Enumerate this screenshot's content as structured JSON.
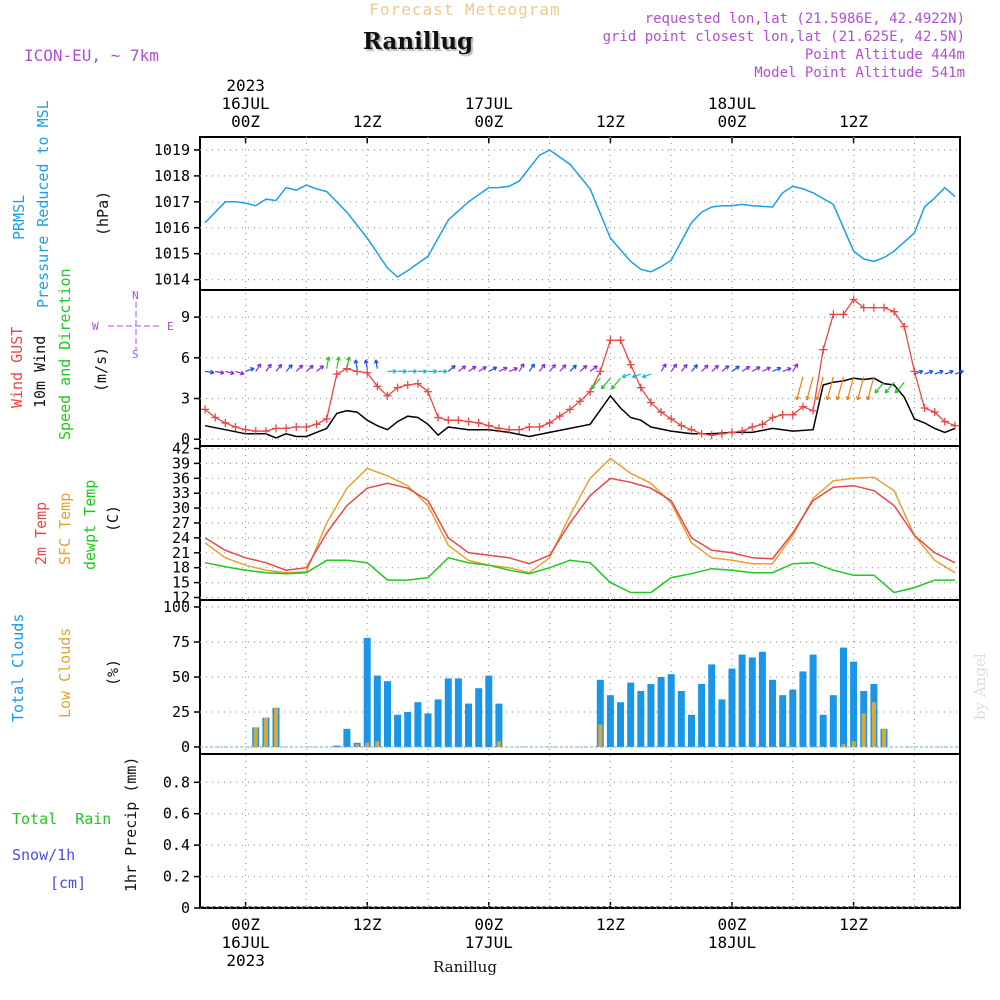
{
  "header": {
    "product": "Forecast Meteogram",
    "title": "Ranillug",
    "model": "ICON-EU, ~ 7km",
    "requested": "requested lon,lat (21.5986E, 42.4922N)",
    "gridpoint": "grid point closest lon,lat (21.625E, 42.5N)",
    "point_alt": "Point Altitude 444m",
    "model_alt": "Model Point Altitude 541m",
    "footer": "Ranillug",
    "credit": "by Angel"
  },
  "colors": {
    "pressure": "#1aa0e8",
    "gust": "#e84848",
    "wind": "#000000",
    "temp2m": "#e84848",
    "sfc": "#e8a030",
    "dewpt": "#20c820",
    "total_clouds": "#1a96e8",
    "low_clouds": "#d8a838",
    "rain": "#20c820",
    "snow": "#4a4ae8",
    "purple": "#b050d0"
  },
  "time_axis": {
    "top": [
      {
        "t": 0,
        "lines": [
          "2023",
          "16JUL",
          "00Z"
        ]
      },
      {
        "t": 12,
        "lines": [
          "12Z"
        ]
      },
      {
        "t": 24,
        "lines": [
          "17JUL",
          "00Z"
        ]
      },
      {
        "t": 36,
        "lines": [
          "12Z"
        ]
      },
      {
        "t": 48,
        "lines": [
          "18JUL",
          "00Z"
        ]
      },
      {
        "t": 60,
        "lines": [
          "12Z"
        ]
      }
    ],
    "bottom": [
      {
        "t": 0,
        "lines": [
          "00Z",
          "16JUL",
          "2023"
        ]
      },
      {
        "t": 12,
        "lines": [
          "12Z"
        ]
      },
      {
        "t": 24,
        "lines": [
          "00Z",
          "17JUL"
        ]
      },
      {
        "t": 36,
        "lines": [
          "12Z"
        ]
      },
      {
        "t": 48,
        "lines": [
          "00Z",
          "18JUL"
        ]
      },
      {
        "t": 60,
        "lines": [
          "12Z"
        ]
      }
    ]
  },
  "panels": {
    "pressure": {
      "ylabel_a": "PRMSL",
      "ylabel_b": "Pressure Reduced to MSL",
      "unit": "(hPa)",
      "ticks": [
        "1014",
        "1015",
        "1016",
        "1017",
        "1018",
        "1019"
      ]
    },
    "wind": {
      "label_gust": "Wind GUST",
      "label_wind": "10m Wind",
      "label_dir": "Speed and Direction",
      "unit": "(m/s)",
      "ticks": [
        "0",
        "3",
        "6",
        "9"
      ],
      "compass": {
        "w": "W",
        "e": "E",
        "n": "N",
        "s": "S"
      }
    },
    "temp": {
      "label_2m": "2m Temp",
      "label_sfc": "SFC Temp",
      "label_dew": "dewpt Temp",
      "unit": "(C)",
      "ticks": [
        "12",
        "15",
        "18",
        "21",
        "24",
        "27",
        "30",
        "33",
        "36",
        "39",
        "42"
      ]
    },
    "clouds": {
      "label_total": "Total Clouds",
      "label_low": "Low Clouds",
      "unit": "(%)",
      "ticks": [
        "0",
        "25",
        "50",
        "75",
        "100"
      ]
    },
    "precip": {
      "label_rain": "Total  Rain",
      "label_snow": "Snow/1h",
      "label_cm": "[cm]",
      "ylabel": "1hr Precip (mm)",
      "ticks": [
        "0",
        "0.2",
        "0.4",
        "0.6",
        "0.8"
      ]
    }
  },
  "chart_data": [
    {
      "type": "line",
      "name": "pressure",
      "x": [
        -4,
        -2,
        -1,
        0,
        1,
        2,
        3,
        4,
        5,
        6,
        7,
        8,
        10,
        12,
        14,
        15,
        16,
        18,
        20,
        22,
        24,
        25,
        26,
        27,
        28,
        29,
        30,
        32,
        34,
        36,
        38,
        39,
        40,
        41,
        42,
        44,
        45,
        46,
        47,
        48,
        49,
        50,
        52,
        53,
        54,
        55,
        56,
        58,
        60,
        61,
        62,
        63,
        64,
        66,
        67,
        68,
        69,
        70
      ],
      "values": [
        1016.2,
        1017.0,
        1017.0,
        1016.95,
        1016.85,
        1017.1,
        1017.05,
        1017.55,
        1017.45,
        1017.65,
        1017.5,
        1017.4,
        1016.6,
        1015.6,
        1014.45,
        1014.1,
        1014.35,
        1014.9,
        1016.3,
        1017.0,
        1017.55,
        1017.55,
        1017.6,
        1017.8,
        1018.3,
        1018.8,
        1019.0,
        1018.45,
        1017.5,
        1015.6,
        1014.7,
        1014.4,
        1014.3,
        1014.5,
        1014.75,
        1016.2,
        1016.6,
        1016.8,
        1016.85,
        1016.85,
        1016.9,
        1016.85,
        1016.8,
        1017.35,
        1017.6,
        1017.5,
        1017.35,
        1016.9,
        1015.1,
        1014.8,
        1014.7,
        1014.85,
        1015.1,
        1015.8,
        1016.8,
        1017.15,
        1017.55,
        1017.2
      ],
      "ylim": [
        1013.6,
        1019.5
      ]
    },
    {
      "type": "line",
      "name": "wind_gust",
      "x": [
        -4,
        -3,
        -2,
        -1,
        0,
        1,
        2,
        3,
        4,
        5,
        6,
        7,
        8,
        9,
        10,
        11,
        12,
        13,
        14,
        15,
        16,
        17,
        18,
        19,
        20,
        21,
        22,
        23,
        24,
        25,
        26,
        27,
        28,
        29,
        30,
        31,
        32,
        33,
        34,
        35,
        36,
        37,
        38,
        39,
        40,
        41,
        42,
        43,
        44,
        45,
        46,
        47,
        48,
        49,
        50,
        51,
        52,
        53,
        54,
        55,
        56,
        57,
        58,
        59,
        60,
        61,
        62,
        63,
        64,
        65,
        66,
        67,
        68,
        69,
        70
      ],
      "values": [
        2.2,
        1.6,
        1.2,
        0.9,
        0.7,
        0.6,
        0.6,
        0.8,
        0.8,
        0.9,
        0.9,
        1.1,
        1.5,
        4.8,
        5.2,
        5.0,
        4.9,
        3.9,
        3.2,
        3.8,
        4.0,
        4.1,
        3.5,
        1.6,
        1.4,
        1.4,
        1.3,
        1.2,
        1.0,
        0.8,
        0.7,
        0.7,
        0.9,
        0.9,
        1.2,
        1.7,
        2.2,
        2.8,
        3.5,
        5.0,
        7.3,
        7.3,
        5.5,
        3.8,
        2.7,
        2.0,
        1.5,
        1.0,
        0.7,
        0.4,
        0.3,
        0.4,
        0.5,
        0.6,
        0.9,
        1.1,
        1.6,
        1.8,
        1.8,
        2.4,
        2.1,
        6.6,
        9.2,
        9.2,
        10.3,
        9.7,
        9.7,
        9.7,
        9.4,
        8.3,
        5.0,
        2.3,
        2.0,
        1.3,
        1.0
      ],
      "ylim": [
        -0.5,
        11
      ]
    },
    {
      "type": "line",
      "name": "wind_10m",
      "x": [
        -4,
        -2,
        0,
        2,
        3,
        4,
        5,
        6,
        7,
        8,
        9,
        10,
        11,
        12,
        13,
        14,
        15,
        16,
        17,
        18,
        19,
        20,
        22,
        24,
        26,
        28,
        30,
        32,
        34,
        36,
        37,
        38,
        39,
        40,
        42,
        44,
        46,
        48,
        50,
        52,
        54,
        56,
        57,
        58,
        59,
        60,
        61,
        62,
        63,
        64,
        65,
        66,
        67,
        68,
        69,
        70
      ],
      "values": [
        1.0,
        0.7,
        0.4,
        0.4,
        0.1,
        0.4,
        0.2,
        0.2,
        0.5,
        0.8,
        1.9,
        2.1,
        2.0,
        1.4,
        1.0,
        0.7,
        1.3,
        1.7,
        1.6,
        1.1,
        0.3,
        0.9,
        0.7,
        0.7,
        0.5,
        0.2,
        0.5,
        0.8,
        1.1,
        3.2,
        2.3,
        1.6,
        1.4,
        0.9,
        0.6,
        0.4,
        0.4,
        0.5,
        0.5,
        0.8,
        0.6,
        0.7,
        4.0,
        4.2,
        4.3,
        4.5,
        4.4,
        4.5,
        4.1,
        4.0,
        3.1,
        1.5,
        1.2,
        0.8,
        0.5,
        0.8
      ],
      "ylim": [
        -0.5,
        11
      ]
    },
    {
      "type": "line",
      "name": "temp_2m",
      "x": [
        -4,
        -2,
        0,
        2,
        4,
        6,
        8,
        10,
        12,
        14,
        16,
        18,
        20,
        22,
        24,
        26,
        28,
        30,
        32,
        34,
        36,
        38,
        40,
        42,
        44,
        46,
        48,
        50,
        52,
        54,
        56,
        58,
        60,
        62,
        64,
        66,
        68,
        70
      ],
      "values": [
        24,
        21.5,
        20,
        19,
        17.5,
        18,
        25,
        30.5,
        34,
        35,
        34,
        31.5,
        24,
        21,
        20.5,
        20,
        18.8,
        20.5,
        27,
        32.5,
        36,
        35.2,
        34,
        31.5,
        24,
        21.5,
        21,
        20,
        19.8,
        25,
        31.5,
        34.2,
        34.5,
        33.5,
        30.5,
        24.5,
        21,
        19
      ],
      "ylim": [
        11.5,
        42.5
      ]
    },
    {
      "type": "line",
      "name": "temp_sfc",
      "x": [
        -4,
        -2,
        0,
        2,
        4,
        6,
        8,
        10,
        12,
        14,
        16,
        18,
        20,
        22,
        24,
        26,
        28,
        30,
        32,
        34,
        36,
        38,
        40,
        42,
        44,
        46,
        48,
        50,
        52,
        54,
        56,
        58,
        60,
        62,
        64,
        66,
        68,
        70
      ],
      "values": [
        23,
        20,
        18.5,
        17.5,
        17,
        17.2,
        27,
        34,
        38,
        36.5,
        34.5,
        30.5,
        22.5,
        19.5,
        18.5,
        18,
        17,
        20,
        28.5,
        36,
        40,
        37,
        35,
        31,
        23,
        20,
        19.5,
        18.8,
        18.8,
        24.5,
        32,
        35.5,
        36,
        36.2,
        33.5,
        24.5,
        19.5,
        17
      ],
      "ylim": [
        11.5,
        42.5
      ]
    },
    {
      "type": "line",
      "name": "dewpt",
      "x": [
        -4,
        -2,
        0,
        2,
        4,
        6,
        8,
        10,
        12,
        14,
        16,
        18,
        20,
        22,
        24,
        26,
        28,
        30,
        32,
        34,
        36,
        38,
        40,
        42,
        44,
        46,
        48,
        50,
        52,
        54,
        56,
        58,
        60,
        62,
        64,
        66,
        68,
        70
      ],
      "values": [
        19,
        18.2,
        17.5,
        17,
        16.8,
        17,
        19.5,
        19.5,
        19,
        15.5,
        15.5,
        16,
        20,
        19,
        18.5,
        17.5,
        16.8,
        18,
        19.5,
        19,
        15,
        13,
        13,
        16,
        16.8,
        17.8,
        17.5,
        17,
        17,
        18.8,
        19,
        17.5,
        16.5,
        16.5,
        13,
        14,
        15.5,
        15.5
      ],
      "ylim": [
        11.5,
        42.5
      ]
    },
    {
      "type": "bar",
      "name": "total_clouds",
      "x": [
        1,
        2,
        3,
        9,
        10,
        11,
        12,
        13,
        14,
        15,
        16,
        17,
        18,
        19,
        20,
        21,
        22,
        23,
        24,
        25,
        26,
        35,
        36,
        37,
        38,
        39,
        40,
        41,
        42,
        43,
        44,
        45,
        46,
        47,
        48,
        49,
        50,
        51,
        52,
        53,
        54,
        55,
        56,
        57,
        58,
        59,
        60,
        61,
        62,
        63
      ],
      "values": [
        14,
        21,
        28,
        1,
        13,
        3,
        78,
        51,
        47,
        23,
        25,
        32,
        24,
        34,
        49,
        49,
        31,
        42,
        51,
        31,
        0,
        48,
        37,
        32,
        46,
        40,
        45,
        50,
        52,
        40,
        23,
        45,
        59,
        34,
        56,
        66,
        64,
        68,
        48,
        37,
        41,
        54,
        66,
        23,
        37,
        71,
        61,
        40,
        45,
        13
      ],
      "ylim": [
        -5,
        105
      ]
    },
    {
      "type": "bar",
      "name": "low_clouds",
      "x": [
        1,
        2,
        3,
        11,
        12,
        13,
        25,
        35,
        59,
        60,
        61,
        62,
        63
      ],
      "values": [
        14,
        21,
        28,
        2,
        3,
        4,
        4,
        16,
        2,
        4,
        24,
        32,
        13
      ],
      "ylim": [
        -5,
        105
      ]
    },
    {
      "type": "bar",
      "name": "precip_1h",
      "x": [],
      "values": [],
      "ylim": [
        0,
        0.98
      ]
    }
  ]
}
